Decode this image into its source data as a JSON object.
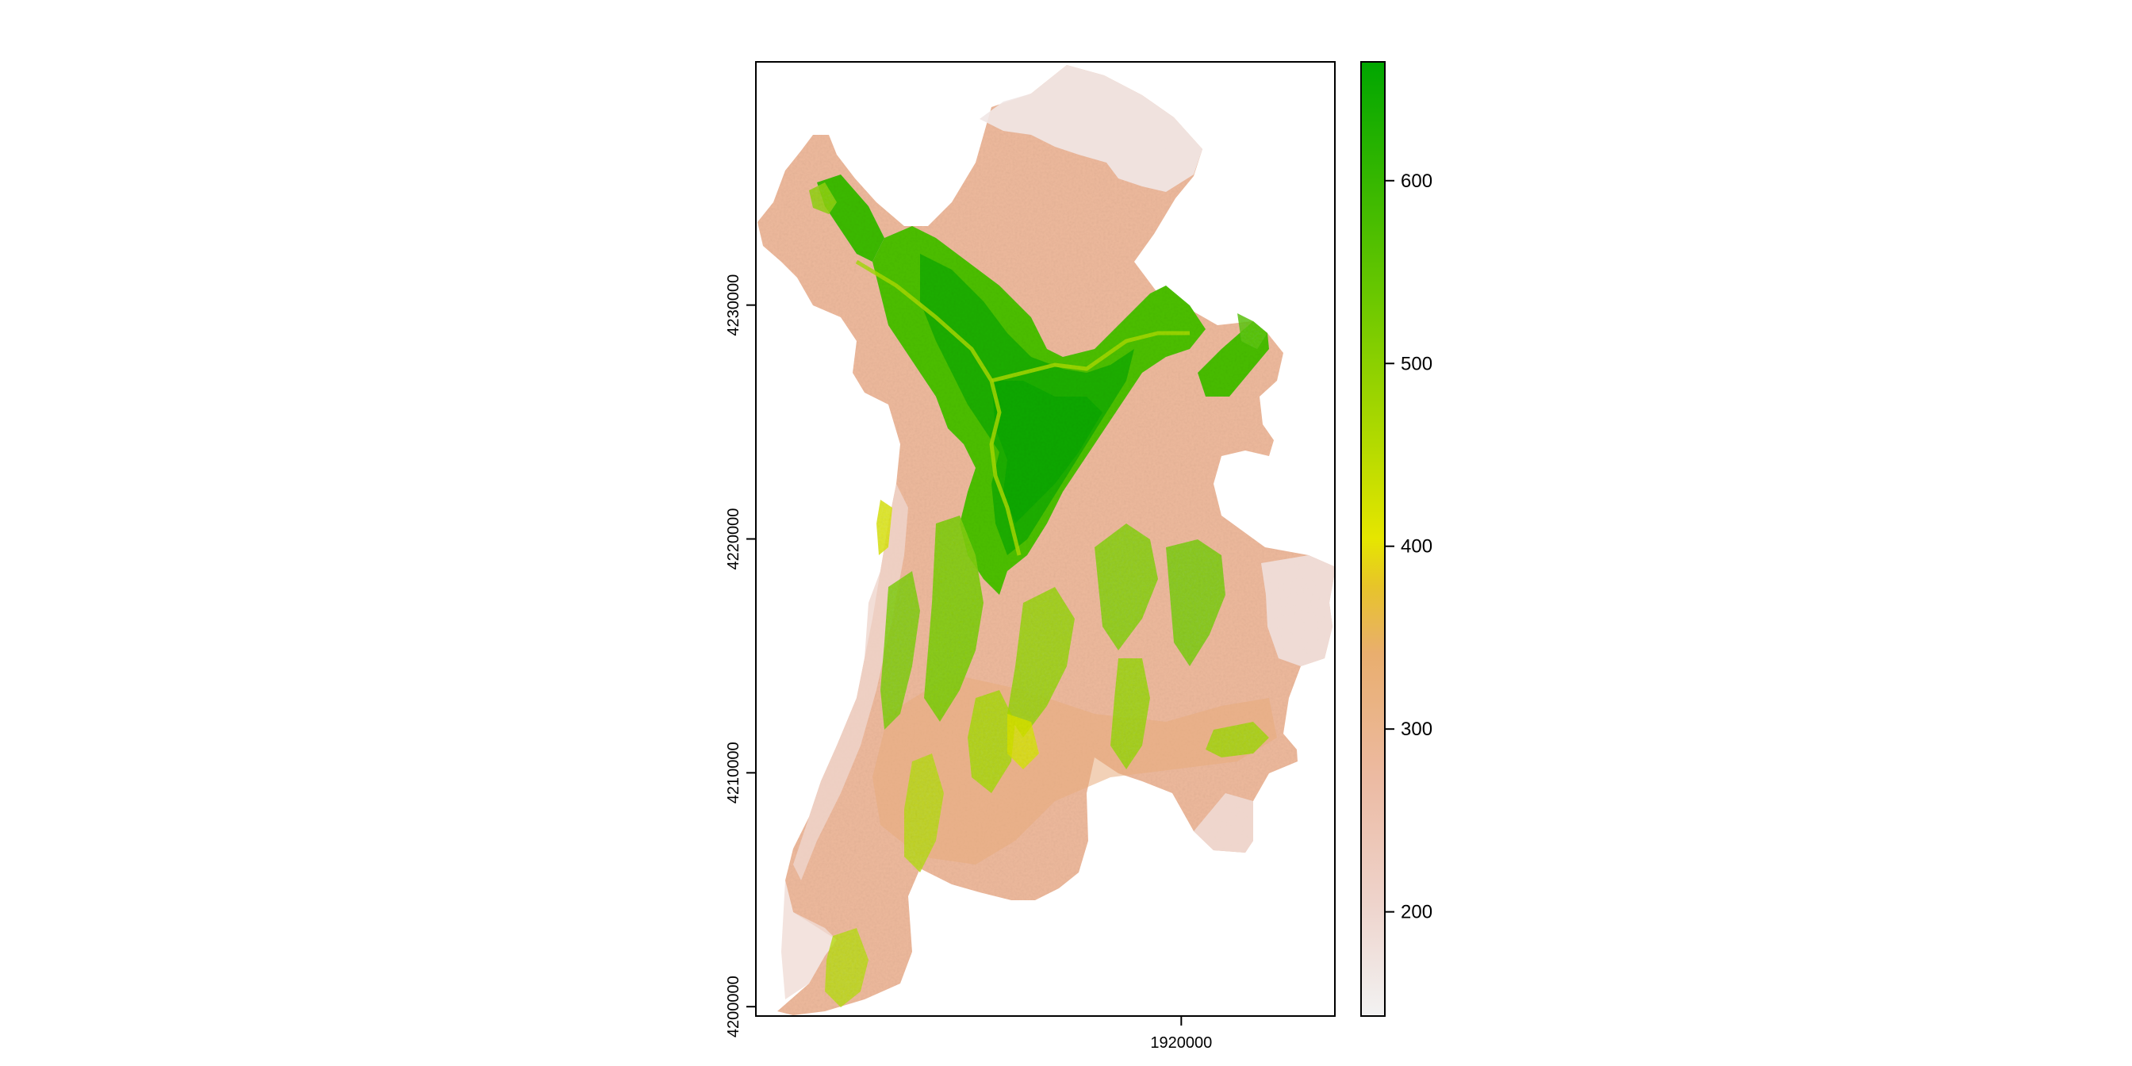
{
  "map": {
    "x_axis": {
      "ticks": [
        {
          "value": 1920000,
          "label": "1920000"
        }
      ]
    },
    "y_axis": {
      "ticks": [
        {
          "value": 4200000,
          "label": "4200000"
        },
        {
          "value": 4210000,
          "label": "4210000"
        },
        {
          "value": 4220000,
          "label": "4220000"
        },
        {
          "value": 4230000,
          "label": "4230000"
        }
      ]
    },
    "extent": {
      "xmin": 1902000,
      "xmax": 1926500,
      "ymin": 4199600,
      "ymax": 4240400
    }
  },
  "legend": {
    "min": 143,
    "max": 665,
    "ticks": [
      {
        "value": 200,
        "label": "200"
      },
      {
        "value": 300,
        "label": "300"
      },
      {
        "value": 400,
        "label": "400"
      },
      {
        "value": 500,
        "label": "500"
      },
      {
        "value": 600,
        "label": "600"
      }
    ],
    "colors": [
      "#f2f2f2",
      "#eec9bd",
      "#ecb08c",
      "#e8b74f",
      "#e6e600",
      "#a3d500",
      "#63c600",
      "#00a600"
    ]
  }
}
